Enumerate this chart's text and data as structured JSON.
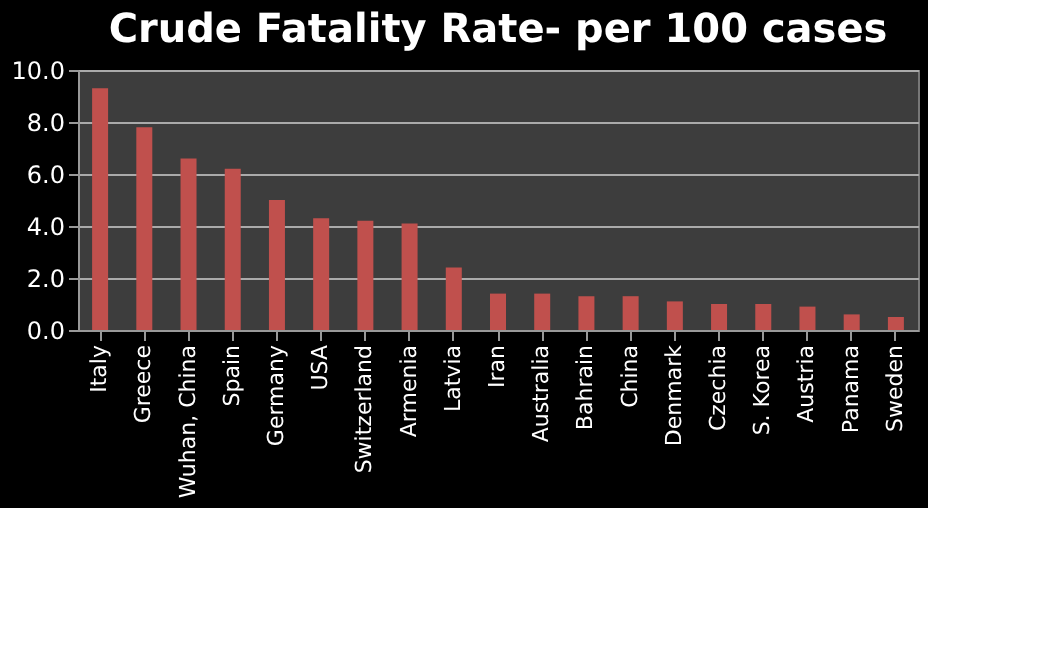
{
  "chart_data": {
    "type": "bar",
    "title": "Crude Fatality Rate- per 100 cases",
    "categories": [
      "Italy",
      "Greece",
      "Wuhan, China",
      "Spain",
      "Germany",
      "USA",
      "Switzerland",
      "Armenia",
      "Latvia",
      "Iran",
      "Australia",
      "Bahrain",
      "China",
      "Denmark",
      "Czechia",
      "S. Korea",
      "Austria",
      "Panama",
      "Sweden"
    ],
    "values": [
      9.3,
      7.8,
      6.6,
      6.2,
      5.0,
      4.3,
      4.2,
      4.1,
      2.4,
      1.4,
      1.4,
      1.3,
      1.3,
      1.1,
      1.0,
      1.0,
      0.9,
      0.6,
      0.5
    ],
    "color": "#c0504d",
    "ylim": [
      0,
      10
    ],
    "yticks": [
      {
        "value": 0,
        "label": "0.0"
      },
      {
        "value": 2,
        "label": "2.0"
      },
      {
        "value": 4,
        "label": "4.0"
      },
      {
        "value": 6,
        "label": "6.0"
      },
      {
        "value": 8,
        "label": "8.0"
      },
      {
        "value": 10,
        "label": "10.0"
      }
    ],
    "grid": "y"
  }
}
